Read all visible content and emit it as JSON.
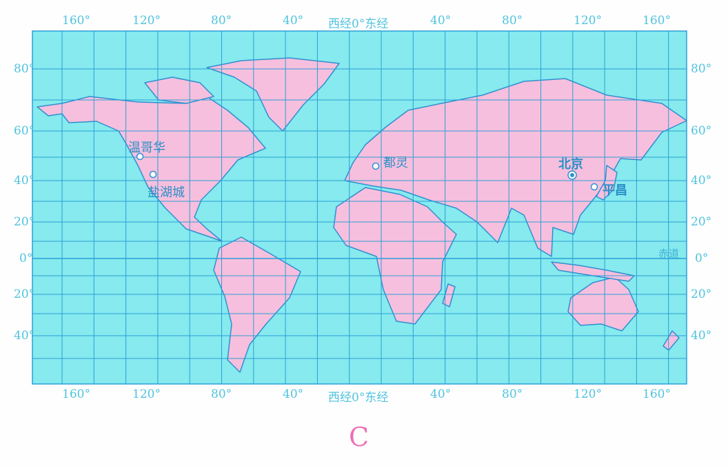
{
  "colors": {
    "sea": "#86eaee",
    "land": "#f6bfdd",
    "grid": "#2a9fd8",
    "coast": "#2f8fd0",
    "label": "#4fc3de",
    "figure_letter": "#ef6fb6"
  },
  "longitude_labels": [
    "160°",
    "120°",
    "80°",
    "40°",
    "西经0°东经",
    "40°",
    "80°",
    "120°",
    "160°"
  ],
  "latitude_labels": [
    "80°",
    "60°",
    "40°",
    "20°",
    "0°",
    "20°",
    "40°"
  ],
  "equator_label": "赤道",
  "cities": [
    {
      "name": "温哥华",
      "icon": "circle-dot"
    },
    {
      "name": "盐湖城",
      "icon": "circle-dot"
    },
    {
      "name": "都灵",
      "icon": "circle-dot"
    },
    {
      "name": "北京",
      "icon": "capital-dot"
    },
    {
      "name": "平昌",
      "icon": "circle-dot"
    }
  ],
  "figure_letter": "C"
}
